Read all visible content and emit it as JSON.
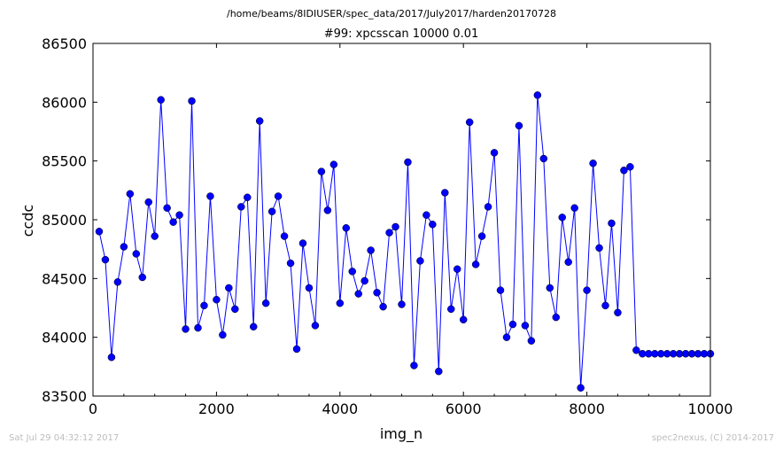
{
  "chart_data": {
    "type": "line",
    "suptitle": "/home/beams/8IDIUSER/spec_data/2017/July2017/harden20170728",
    "title": "#99: xpcsscan 10000 0.01",
    "xlabel": "img_n",
    "ylabel": "ccdc",
    "xlim": [
      0,
      10000
    ],
    "ylim": [
      83500,
      86500
    ],
    "xticks": [
      0,
      2000,
      4000,
      6000,
      8000,
      10000
    ],
    "yticks": [
      83500,
      84000,
      84500,
      85000,
      85500,
      86000,
      86500
    ],
    "grid": false,
    "legend": "none",
    "color": "#0000ff",
    "series": [
      {
        "x": [
          100,
          200,
          300,
          400,
          500,
          600,
          700,
          800,
          900,
          1000,
          1100,
          1200,
          1300,
          1400,
          1500,
          1600,
          1700,
          1800,
          1900,
          2000,
          2100,
          2200,
          2300,
          2400,
          2500,
          2600,
          2700,
          2800,
          2900,
          3000,
          3100,
          3200,
          3300,
          3400,
          3500,
          3600,
          3700,
          3800,
          3900,
          4000,
          4100,
          4200,
          4300,
          4400,
          4500,
          4600,
          4700,
          4800,
          4900,
          5000,
          5100,
          5200,
          5300,
          5400,
          5500,
          5600,
          5700,
          5800,
          5900,
          6000,
          6100,
          6200,
          6300,
          6400,
          6500,
          6600,
          6700,
          6800,
          6900,
          7000,
          7100,
          7200,
          7300,
          7400,
          7500,
          7600,
          7700,
          7800,
          7900,
          8000,
          8100,
          8200,
          8300,
          8400,
          8500,
          8600,
          8700,
          8800,
          8900,
          9000,
          9100,
          9200,
          9300,
          9400,
          9500,
          9600,
          9700,
          9800,
          9900,
          10000
        ],
        "values": [
          84900,
          84660,
          83830,
          84470,
          84770,
          85220,
          84710,
          84510,
          85150,
          84860,
          86020,
          85100,
          84980,
          85040,
          84070,
          86010,
          84080,
          84270,
          85200,
          84320,
          84020,
          84420,
          84240,
          85110,
          85190,
          84090,
          85840,
          84290,
          85070,
          85200,
          84860,
          84630,
          83900,
          84800,
          84420,
          84100,
          85410,
          85080,
          85470,
          84290,
          84930,
          84560,
          84370,
          84480,
          84740,
          84380,
          84260,
          84890,
          84940,
          84280,
          85490,
          83760,
          84650,
          85040,
          84960,
          83710,
          85230,
          84240,
          84580,
          84150,
          85830,
          84620,
          84860,
          85110,
          85570,
          84400,
          84000,
          84110,
          85800,
          84100,
          83970,
          86060,
          85520,
          84420,
          84170,
          85020,
          84640,
          85100,
          83570,
          84400,
          85480,
          84760,
          84270,
          84970,
          84210,
          85420,
          85450,
          83890,
          83860,
          83860,
          83860,
          83860,
          83860,
          83860,
          83860,
          83860,
          83860,
          83860,
          83860,
          83860
        ]
      }
    ]
  },
  "footer": {
    "timestamp": "Sat Jul 29 04:32:12 2017",
    "credit": "spec2nexus, (C) 2014-2017"
  }
}
